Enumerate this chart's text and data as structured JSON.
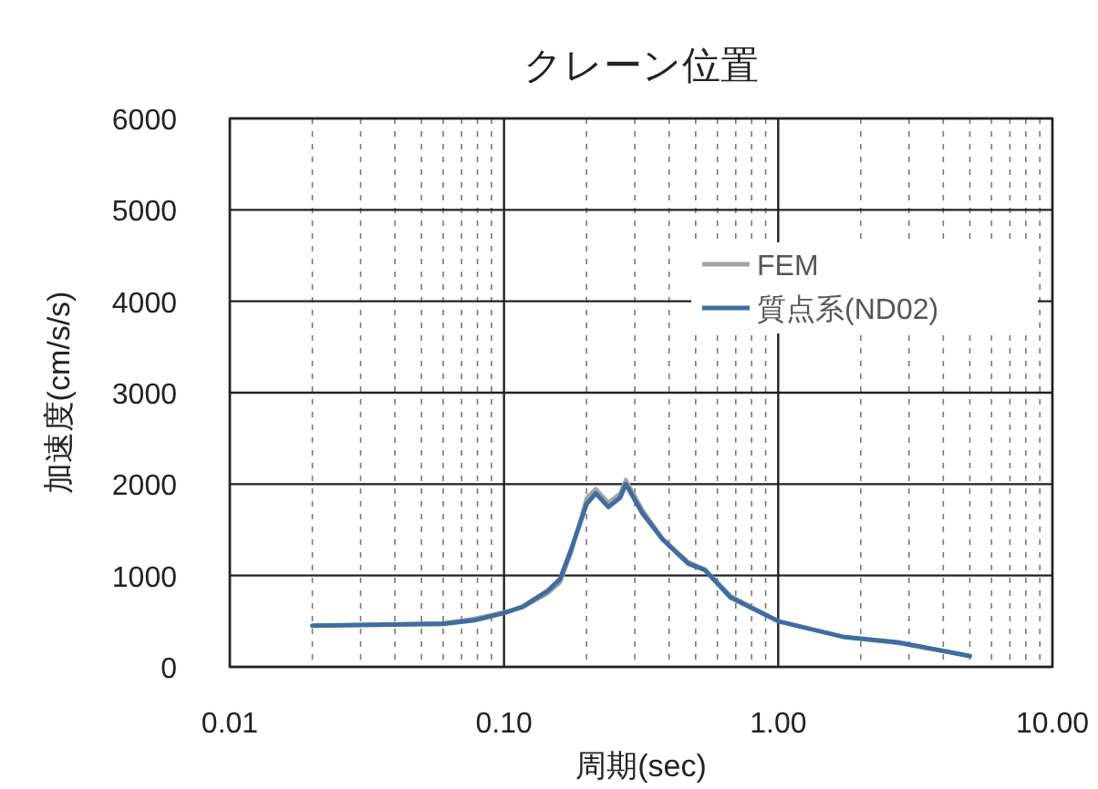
{
  "chart_data": {
    "type": "line",
    "title": "クレーン位置",
    "xlabel": "周期(sec)",
    "ylabel": "加速度(cm/s/s)",
    "log": "x",
    "xlim": [
      0.01,
      10
    ],
    "ylim": [
      0,
      6000
    ],
    "xticks": [
      {
        "value": 0.01,
        "label": "0.01"
      },
      {
        "value": 0.1,
        "label": "0.10"
      },
      {
        "value": 1,
        "label": "1.00"
      },
      {
        "value": 10,
        "label": "10.00"
      }
    ],
    "yticks": [
      0,
      1000,
      2000,
      3000,
      4000,
      5000,
      6000
    ],
    "grid": true,
    "legend": "top right",
    "marker": "none",
    "line_style": "solid",
    "series": [
      {
        "name": "FEM",
        "color": "#a3a3a3",
        "x": [
          0.02,
          0.06,
          0.078,
          0.1,
          0.117,
          0.144,
          0.16,
          0.176,
          0.2,
          0.216,
          0.24,
          0.265,
          0.278,
          0.32,
          0.38,
          0.47,
          0.54,
          0.67,
          1.0,
          1.72,
          2.72,
          5.0
        ],
        "values": [
          450,
          480,
          530,
          600,
          650,
          800,
          920,
          1250,
          1850,
          1950,
          1800,
          1900,
          2050,
          1720,
          1400,
          1150,
          1070,
          780,
          500,
          330,
          260,
          120
        ]
      },
      {
        "name": "質点系(ND02)",
        "color": "#3f6d9f",
        "x": [
          0.02,
          0.06,
          0.078,
          0.1,
          0.117,
          0.144,
          0.16,
          0.176,
          0.2,
          0.216,
          0.24,
          0.265,
          0.278,
          0.32,
          0.38,
          0.47,
          0.54,
          0.67,
          1.0,
          1.72,
          2.72,
          5.0
        ],
        "values": [
          450,
          470,
          510,
          590,
          660,
          830,
          960,
          1290,
          1780,
          1900,
          1750,
          1850,
          2000,
          1680,
          1390,
          1130,
          1060,
          760,
          500,
          330,
          270,
          120
        ]
      }
    ]
  }
}
